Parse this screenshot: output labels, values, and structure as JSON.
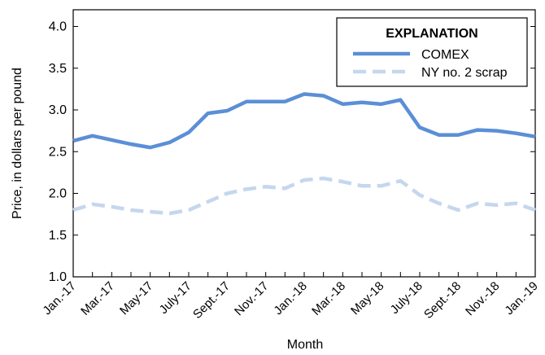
{
  "chart_data": {
    "type": "line",
    "x_label": "Month",
    "y_label": "Price, in dollars per pound",
    "legend_title": "EXPLANATION",
    "categories": [
      "Jan.-17",
      null,
      "Mar.-17",
      null,
      "May-17",
      null,
      "July-17",
      null,
      "Sept.-17",
      null,
      "Nov.-17",
      null,
      "Jan.-18",
      null,
      "Mar.-18",
      null,
      "May-18",
      null,
      "July-18",
      null,
      "Sept.-18",
      null,
      "Nov.-18",
      null,
      "Jan.-19"
    ],
    "series": [
      {
        "name": "COMEX",
        "color": "#5b8fd6",
        "dashed": false,
        "values": [
          2.63,
          2.69,
          2.64,
          2.59,
          2.55,
          2.61,
          2.73,
          2.96,
          2.99,
          3.1,
          3.1,
          3.1,
          3.19,
          3.17,
          3.07,
          3.09,
          3.07,
          3.12,
          2.79,
          2.7,
          2.7,
          2.76,
          2.75,
          2.72,
          2.68
        ]
      },
      {
        "name": "NY no. 2 scrap",
        "color": "#c5d7ee",
        "dashed": true,
        "values": [
          1.8,
          1.87,
          1.84,
          1.8,
          1.78,
          1.76,
          1.8,
          1.9,
          2.0,
          2.05,
          2.08,
          2.06,
          2.16,
          2.18,
          2.14,
          2.09,
          2.09,
          2.15,
          1.98,
          1.88,
          1.8,
          1.88,
          1.86,
          1.88,
          1.8
        ]
      }
    ],
    "ylim": [
      1.0,
      4.2
    ],
    "yticks": [
      {
        "value": 1.0,
        "label": "1.0"
      },
      {
        "value": 1.5,
        "label": "1.5"
      },
      {
        "value": 2.0,
        "label": "2.0"
      },
      {
        "value": 2.5,
        "label": "2.5"
      },
      {
        "value": 3.0,
        "label": "3.0"
      },
      {
        "value": 3.5,
        "label": "3.5"
      },
      {
        "value": 4.0,
        "label": "4.0"
      }
    ],
    "grid": false,
    "legend_position": "upper right"
  }
}
